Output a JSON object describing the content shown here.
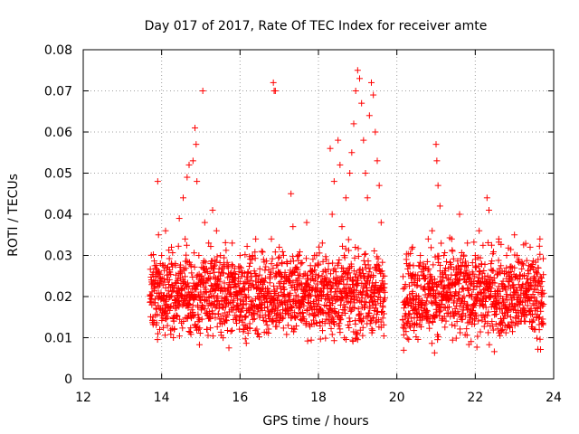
{
  "chart_data": {
    "type": "scatter",
    "title": "Day 017 of 2017, Rate Of TEC Index for receiver amte",
    "xlabel": "GPS time / hours",
    "ylabel": "ROTI / TECUs",
    "xlim": [
      12,
      24
    ],
    "ylim": [
      0,
      0.08
    ],
    "x_ticks": [
      12,
      14,
      16,
      18,
      20,
      22,
      24
    ],
    "x_tick_labels": [
      "12",
      "14",
      "16",
      "18",
      "20",
      "22",
      "24"
    ],
    "y_ticks": [
      0,
      0.01,
      0.02,
      0.03,
      0.04,
      0.05,
      0.06,
      0.07,
      0.08
    ],
    "y_tick_labels": [
      "0",
      "0.01",
      "0.02",
      "0.03",
      "0.04",
      "0.05",
      "0.06",
      "0.07",
      "0.08"
    ],
    "grid": true,
    "marker": "+",
    "color": "#ff0000",
    "series": [
      {
        "name": "ROTI",
        "points": [
          [
            13.75,
            0.018
          ],
          [
            13.8,
            0.022
          ],
          [
            13.85,
            0.025
          ],
          [
            13.9,
            0.048
          ],
          [
            13.92,
            0.035
          ],
          [
            13.95,
            0.012
          ],
          [
            14.0,
            0.03
          ],
          [
            14.05,
            0.02
          ],
          [
            14.1,
            0.036
          ],
          [
            14.15,
            0.015
          ],
          [
            14.2,
            0.026
          ],
          [
            14.25,
            0.032
          ],
          [
            14.3,
            0.01
          ],
          [
            14.35,
            0.028
          ],
          [
            14.4,
            0.022
          ],
          [
            14.45,
            0.039
          ],
          [
            14.5,
            0.02
          ],
          [
            14.55,
            0.044
          ],
          [
            14.6,
            0.034
          ],
          [
            14.65,
            0.049
          ],
          [
            14.7,
            0.052
          ],
          [
            14.75,
            0.015
          ],
          [
            14.8,
            0.053
          ],
          [
            14.85,
            0.061
          ],
          [
            14.88,
            0.057
          ],
          [
            14.9,
            0.048
          ],
          [
            14.95,
            0.03
          ],
          [
            15.0,
            0.025
          ],
          [
            15.05,
            0.07
          ],
          [
            15.1,
            0.038
          ],
          [
            15.15,
            0.012
          ],
          [
            15.2,
            0.033
          ],
          [
            15.25,
            0.028
          ],
          [
            15.3,
            0.041
          ],
          [
            15.35,
            0.018
          ],
          [
            15.4,
            0.036
          ],
          [
            15.45,
            0.022
          ],
          [
            15.5,
            0.03
          ],
          [
            15.6,
            0.014
          ],
          [
            15.7,
            0.027
          ],
          [
            15.8,
            0.033
          ],
          [
            15.9,
            0.021
          ],
          [
            16.0,
            0.03
          ],
          [
            16.1,
            0.012
          ],
          [
            16.2,
            0.026
          ],
          [
            16.3,
            0.018
          ],
          [
            16.4,
            0.034
          ],
          [
            16.5,
            0.015
          ],
          [
            16.6,
            0.029
          ],
          [
            16.7,
            0.022
          ],
          [
            16.8,
            0.034
          ],
          [
            16.85,
            0.072
          ],
          [
            16.87,
            0.07
          ],
          [
            16.9,
            0.07
          ],
          [
            16.95,
            0.019
          ],
          [
            17.0,
            0.032
          ],
          [
            17.1,
            0.02
          ],
          [
            17.2,
            0.028
          ],
          [
            17.3,
            0.045
          ],
          [
            17.35,
            0.037
          ],
          [
            17.4,
            0.026
          ],
          [
            17.5,
            0.03
          ],
          [
            17.6,
            0.016
          ],
          [
            17.7,
            0.038
          ],
          [
            17.8,
            0.024
          ],
          [
            17.9,
            0.03
          ],
          [
            18.0,
            0.02
          ],
          [
            18.1,
            0.033
          ],
          [
            18.2,
            0.029
          ],
          [
            18.3,
            0.056
          ],
          [
            18.35,
            0.04
          ],
          [
            18.4,
            0.048
          ],
          [
            18.5,
            0.058
          ],
          [
            18.55,
            0.052
          ],
          [
            18.6,
            0.037
          ],
          [
            18.7,
            0.044
          ],
          [
            18.8,
            0.05
          ],
          [
            18.85,
            0.055
          ],
          [
            18.9,
            0.062
          ],
          [
            18.95,
            0.07
          ],
          [
            19.0,
            0.075
          ],
          [
            19.05,
            0.073
          ],
          [
            19.1,
            0.067
          ],
          [
            19.15,
            0.058
          ],
          [
            19.2,
            0.05
          ],
          [
            19.25,
            0.044
          ],
          [
            19.3,
            0.064
          ],
          [
            19.35,
            0.072
          ],
          [
            19.4,
            0.069
          ],
          [
            19.45,
            0.06
          ],
          [
            19.5,
            0.053
          ],
          [
            19.55,
            0.047
          ],
          [
            19.6,
            0.038
          ],
          [
            19.65,
            0.025
          ],
          [
            20.2,
            0.018
          ],
          [
            20.25,
            0.028
          ],
          [
            20.3,
            0.014
          ],
          [
            20.4,
            0.032
          ],
          [
            20.5,
            0.02
          ],
          [
            20.6,
            0.03
          ],
          [
            20.7,
            0.025
          ],
          [
            20.8,
            0.034
          ],
          [
            20.9,
            0.036
          ],
          [
            21.0,
            0.057
          ],
          [
            21.02,
            0.053
          ],
          [
            21.05,
            0.047
          ],
          [
            21.1,
            0.042
          ],
          [
            21.2,
            0.03
          ],
          [
            21.3,
            0.022
          ],
          [
            21.4,
            0.034
          ],
          [
            21.5,
            0.016
          ],
          [
            21.6,
            0.04
          ],
          [
            21.7,
            0.025
          ],
          [
            21.8,
            0.033
          ],
          [
            21.9,
            0.02
          ],
          [
            22.0,
            0.03
          ],
          [
            22.1,
            0.036
          ],
          [
            22.2,
            0.018
          ],
          [
            22.3,
            0.044
          ],
          [
            22.35,
            0.041
          ],
          [
            22.4,
            0.028
          ],
          [
            22.5,
            0.02
          ],
          [
            22.6,
            0.034
          ],
          [
            22.7,
            0.012
          ],
          [
            22.8,
            0.03
          ],
          [
            22.9,
            0.022
          ],
          [
            23.0,
            0.035
          ],
          [
            23.1,
            0.014
          ],
          [
            23.2,
            0.028
          ],
          [
            23.3,
            0.02
          ],
          [
            23.4,
            0.032
          ],
          [
            23.5,
            0.012
          ],
          [
            23.6,
            0.027
          ],
          [
            23.65,
            0.034
          ],
          [
            23.7,
            0.02
          ]
        ]
      }
    ],
    "dense_band": {
      "description": "bulk of points",
      "segments": [
        {
          "x_start": 13.7,
          "x_end": 19.7,
          "y_min": 0.006,
          "y_max": 0.035
        },
        {
          "x_start": 20.15,
          "x_end": 23.75,
          "y_min": 0.005,
          "y_max": 0.036
        }
      ],
      "typical_center": 0.02,
      "point_spacing_hours": 0.004
    }
  }
}
